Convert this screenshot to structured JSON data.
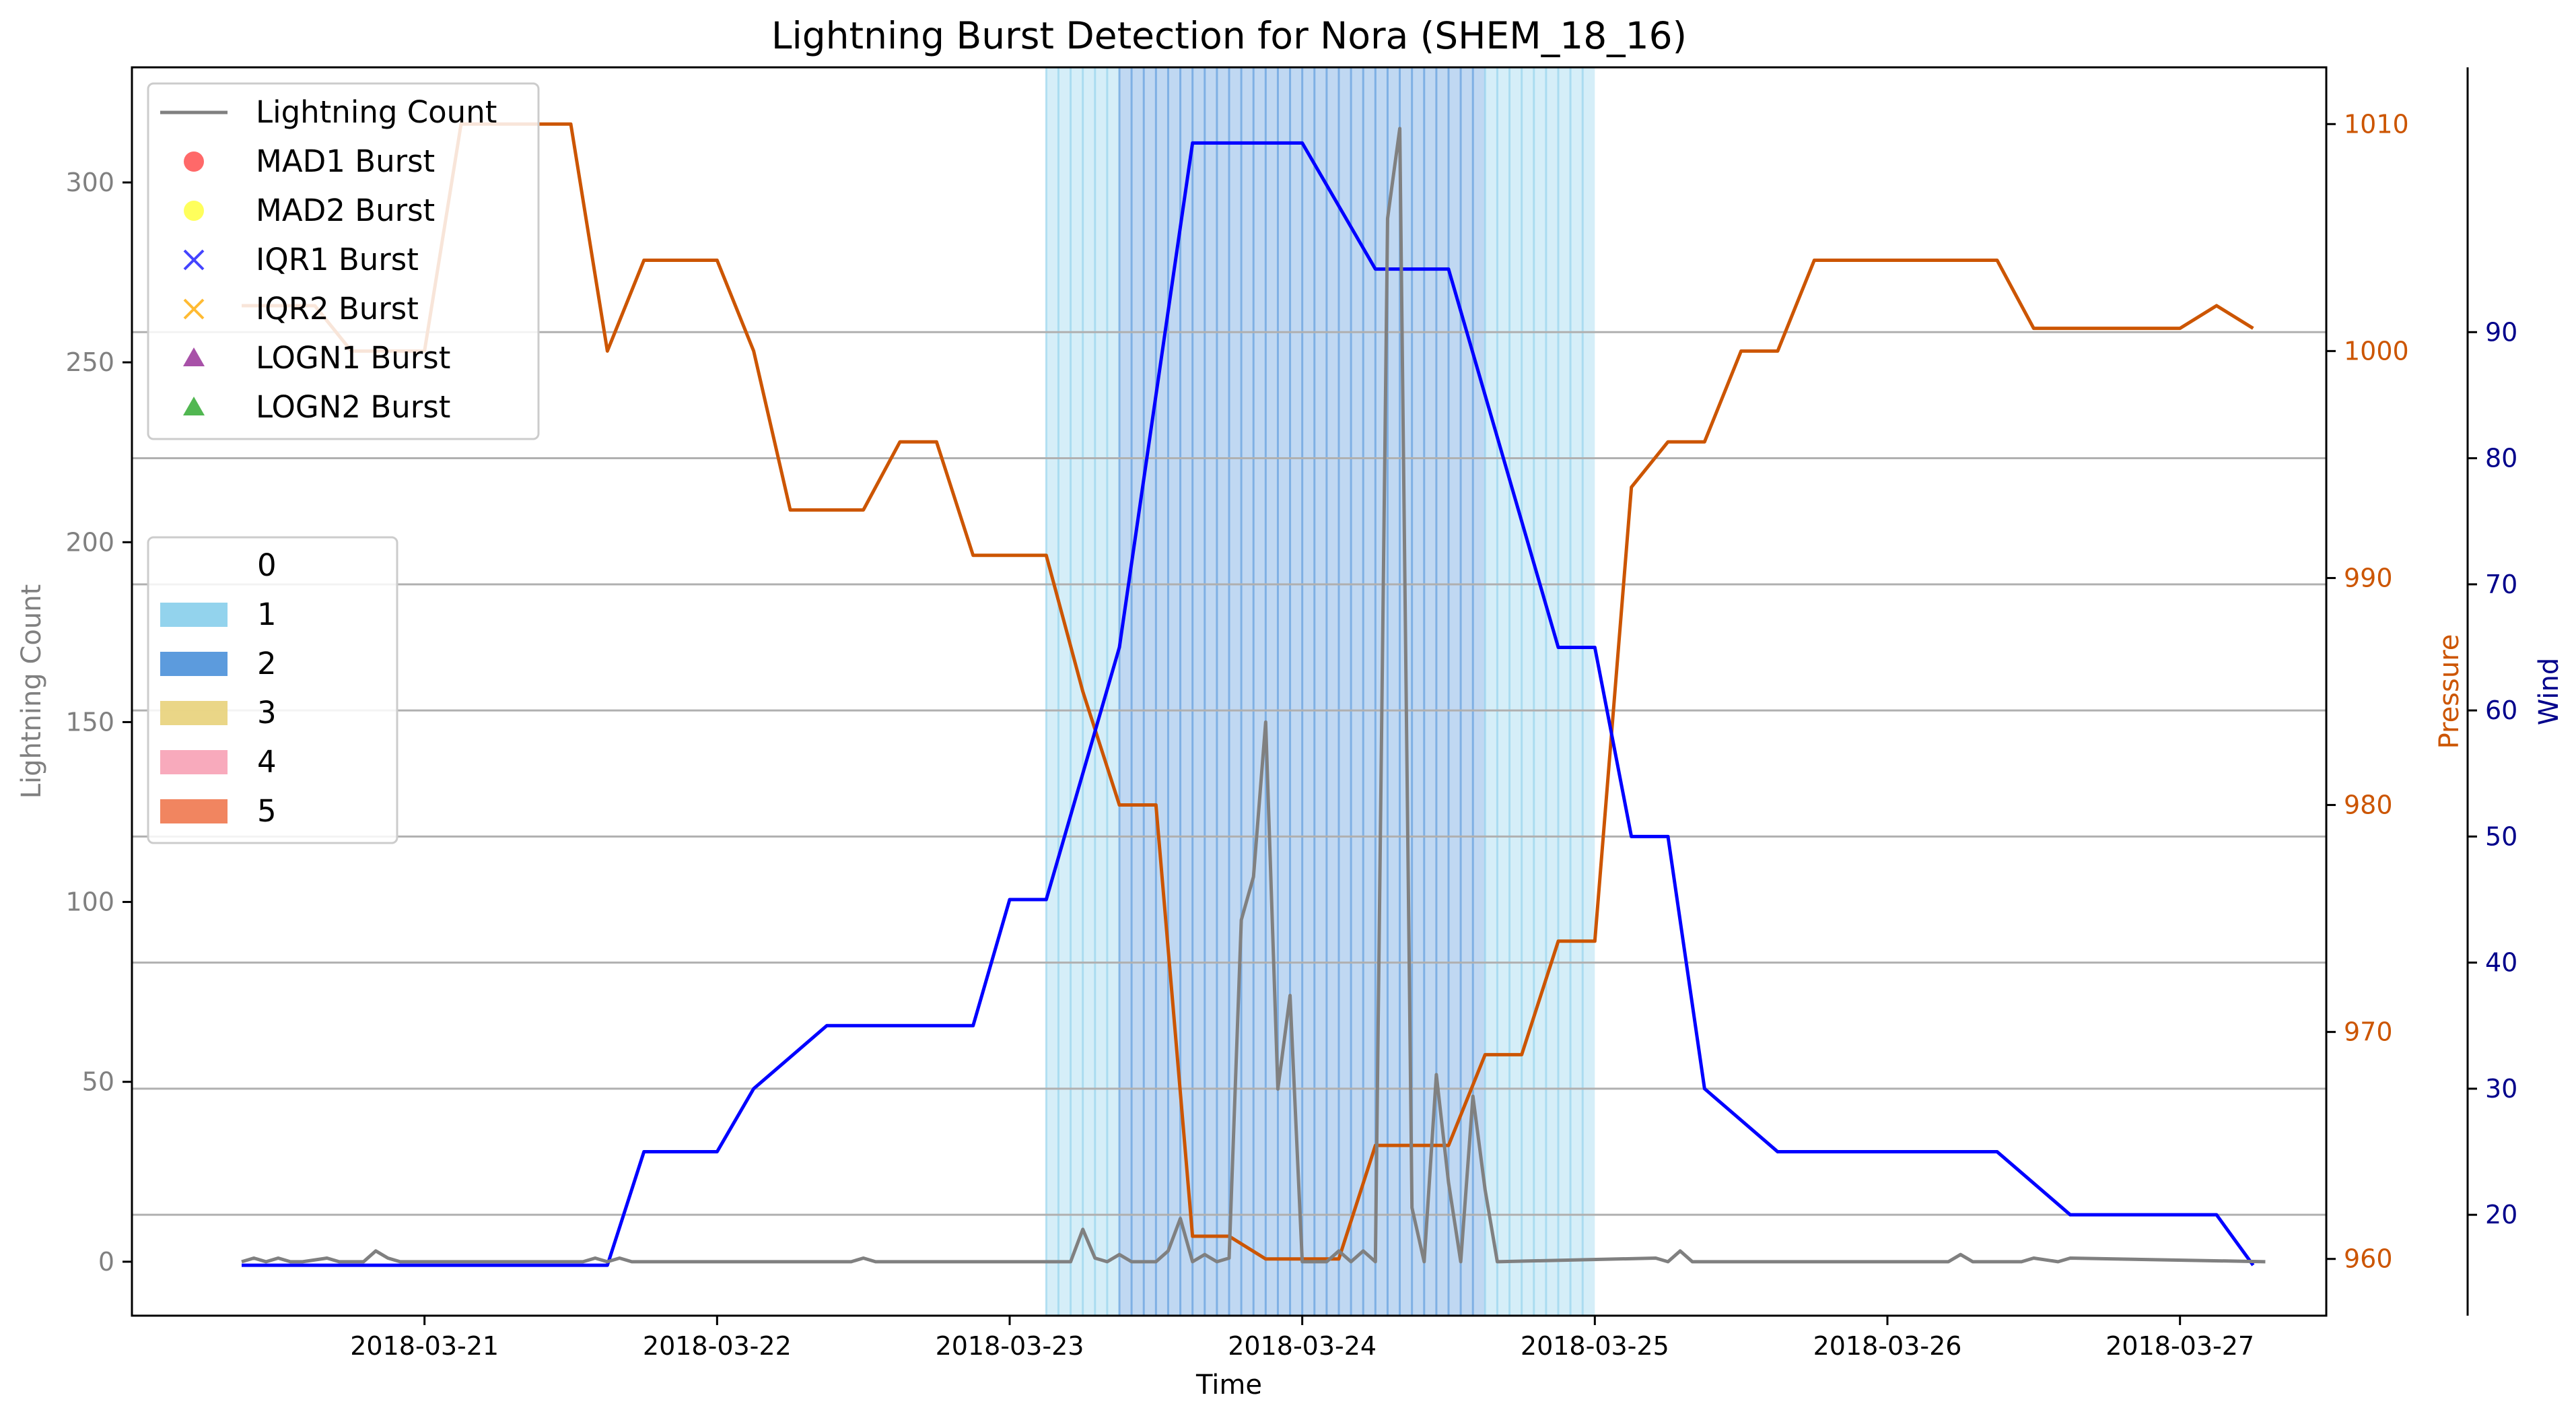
{
  "chart_data": {
    "type": "line",
    "title": "Lightning Burst Detection for Nora (SHEM_18_16)",
    "xlabel": "Time",
    "ylabel_left": "Lightning Count",
    "ylabel_pressure": "Pressure",
    "ylabel_wind": "Wind",
    "x_range": [
      "2018-03-20 00:00",
      "2018-03-27 12:00"
    ],
    "x_ticks": [
      "2018-03-21",
      "2018-03-22",
      "2018-03-23",
      "2018-03-24",
      "2018-03-25",
      "2018-03-26",
      "2018-03-27"
    ],
    "ylim_left": [
      -15,
      332
    ],
    "yticks_left": [
      0,
      50,
      100,
      150,
      200,
      250,
      300
    ],
    "ylim_pressure": [
      957.5,
      1012.5
    ],
    "yticks_pressure": [
      960,
      970,
      980,
      990,
      1000,
      1010
    ],
    "ylim_wind": [
      12,
      111
    ],
    "yticks_wind": [
      20,
      30,
      40,
      50,
      60,
      70,
      80,
      90
    ],
    "grid": "horizontal lines at wind ticks",
    "colors": {
      "lightning": "#808080",
      "pressure": "#cc5500",
      "wind": "#0000ff",
      "wind_axis": "#00008b",
      "category_1": "#87ceeb",
      "category_2": "#4a90d9",
      "category_3": "#e8d27a",
      "category_4": "#f7a1b5",
      "category_5": "#f0784f"
    },
    "category_bands": [
      {
        "category": "1",
        "start": "2018-03-23 03:00",
        "end": "2018-03-23 09:00"
      },
      {
        "category": "2",
        "start": "2018-03-23 09:00",
        "end": "2018-03-24 15:00"
      },
      {
        "category": "1",
        "start": "2018-03-24 15:00",
        "end": "2018-03-25 00:00"
      }
    ],
    "series": [
      {
        "name": "Lightning Count",
        "axis": "left",
        "x": [
          "2018-03-20 09:00",
          "2018-03-20 10:00",
          "2018-03-20 11:00",
          "2018-03-20 12:00",
          "2018-03-20 13:00",
          "2018-03-20 14:00",
          "2018-03-20 16:00",
          "2018-03-20 17:00",
          "2018-03-20 19:00",
          "2018-03-20 20:00",
          "2018-03-20 21:00",
          "2018-03-20 22:00",
          "2018-03-21 13:00",
          "2018-03-21 14:00",
          "2018-03-21 15:00",
          "2018-03-21 16:00",
          "2018-03-21 17:00",
          "2018-03-22 11:00",
          "2018-03-22 12:00",
          "2018-03-22 13:00",
          "2018-03-23 05:00",
          "2018-03-23 06:00",
          "2018-03-23 07:00",
          "2018-03-23 08:00",
          "2018-03-23 09:00",
          "2018-03-23 10:00",
          "2018-03-23 12:00",
          "2018-03-23 13:00",
          "2018-03-23 14:00",
          "2018-03-23 15:00",
          "2018-03-23 16:00",
          "2018-03-23 17:00",
          "2018-03-23 18:00",
          "2018-03-23 19:00",
          "2018-03-23 20:00",
          "2018-03-23 21:00",
          "2018-03-23 22:00",
          "2018-03-23 23:00",
          "2018-03-24 00:00",
          "2018-03-24 01:00",
          "2018-03-24 02:00",
          "2018-03-24 03:00",
          "2018-03-24 04:00",
          "2018-03-24 05:00",
          "2018-03-24 06:00",
          "2018-03-24 07:00",
          "2018-03-24 08:00",
          "2018-03-24 09:00",
          "2018-03-24 10:00",
          "2018-03-24 11:00",
          "2018-03-24 12:00",
          "2018-03-24 13:00",
          "2018-03-24 14:00",
          "2018-03-24 15:00",
          "2018-03-24 16:00",
          "2018-03-25 05:00",
          "2018-03-25 06:00",
          "2018-03-25 07:00",
          "2018-03-25 08:00",
          "2018-03-25 09:00",
          "2018-03-26 05:00",
          "2018-03-26 06:00",
          "2018-03-26 07:00",
          "2018-03-26 11:00",
          "2018-03-26 12:00",
          "2018-03-26 14:00",
          "2018-03-26 15:00",
          "2018-03-27 07:00"
        ],
        "values": [
          0,
          1,
          0,
          1,
          0,
          0,
          1,
          0,
          0,
          3,
          1,
          0,
          0,
          1,
          0,
          1,
          0,
          0,
          1,
          0,
          0,
          9,
          1,
          0,
          2,
          0,
          0,
          3,
          12,
          0,
          2,
          0,
          1,
          95,
          107,
          150,
          48,
          74,
          0,
          0,
          0,
          3,
          0,
          3,
          0,
          290,
          315,
          15,
          0,
          52,
          22,
          0,
          46,
          20,
          0,
          1,
          0,
          3,
          0,
          0,
          0,
          2,
          0,
          0,
          1,
          0,
          1,
          0
        ]
      },
      {
        "name": "Pressure",
        "axis": "pressure",
        "x": [
          "2018-03-20 09:00",
          "2018-03-20 15:00",
          "2018-03-20 18:00",
          "2018-03-21 00:00",
          "2018-03-21 03:00",
          "2018-03-21 06:00",
          "2018-03-21 09:00",
          "2018-03-21 12:00",
          "2018-03-21 15:00",
          "2018-03-21 18:00",
          "2018-03-21 21:00",
          "2018-03-22 00:00",
          "2018-03-22 03:00",
          "2018-03-22 06:00",
          "2018-03-22 09:00",
          "2018-03-22 12:00",
          "2018-03-22 15:00",
          "2018-03-22 18:00",
          "2018-03-22 21:00",
          "2018-03-23 00:00",
          "2018-03-23 03:00",
          "2018-03-23 06:00",
          "2018-03-23 09:00",
          "2018-03-23 12:00",
          "2018-03-23 15:00",
          "2018-03-23 18:00",
          "2018-03-23 21:00",
          "2018-03-24 00:00",
          "2018-03-24 03:00",
          "2018-03-24 06:00",
          "2018-03-24 09:00",
          "2018-03-24 12:00",
          "2018-03-24 15:00",
          "2018-03-24 18:00",
          "2018-03-24 21:00",
          "2018-03-25 00:00",
          "2018-03-25 03:00",
          "2018-03-25 06:00",
          "2018-03-25 09:00",
          "2018-03-25 12:00",
          "2018-03-25 15:00",
          "2018-03-25 18:00",
          "2018-03-25 21:00",
          "2018-03-26 00:00",
          "2018-03-26 03:00",
          "2018-03-26 06:00",
          "2018-03-26 09:00",
          "2018-03-26 12:00",
          "2018-03-26 15:00",
          "2018-03-26 18:00",
          "2018-03-26 21:00",
          "2018-03-27 00:00",
          "2018-03-27 03:00",
          "2018-03-27 06:00"
        ],
        "values": [
          1002,
          1002,
          1000,
          1000,
          1010,
          1010,
          1010,
          1010,
          1000,
          1004,
          1004,
          1004,
          1000,
          993,
          993,
          993,
          996,
          996,
          991,
          991,
          991,
          985,
          980,
          980,
          961,
          961,
          960,
          960,
          960,
          965,
          965,
          965,
          969,
          969,
          974,
          974,
          994,
          996,
          996,
          1000,
          1000,
          1004,
          1004,
          1004,
          1004,
          1004,
          1004,
          1001,
          1001,
          1001,
          1001,
          1001,
          1002,
          1001
        ]
      },
      {
        "name": "Wind",
        "axis": "wind",
        "x": [
          "2018-03-20 09:00",
          "2018-03-20 15:00",
          "2018-03-20 21:00",
          "2018-03-21 03:00",
          "2018-03-21 09:00",
          "2018-03-21 12:00",
          "2018-03-21 15:00",
          "2018-03-21 18:00",
          "2018-03-21 21:00",
          "2018-03-22 00:00",
          "2018-03-22 03:00",
          "2018-03-22 09:00",
          "2018-03-22 15:00",
          "2018-03-22 21:00",
          "2018-03-23 00:00",
          "2018-03-23 03:00",
          "2018-03-23 06:00",
          "2018-03-23 09:00",
          "2018-03-23 15:00",
          "2018-03-23 21:00",
          "2018-03-24 00:00",
          "2018-03-24 06:00",
          "2018-03-24 12:00",
          "2018-03-24 15:00",
          "2018-03-24 21:00",
          "2018-03-25 00:00",
          "2018-03-25 03:00",
          "2018-03-25 06:00",
          "2018-03-25 09:00",
          "2018-03-25 15:00",
          "2018-03-25 21:00",
          "2018-03-26 03:00",
          "2018-03-26 09:00",
          "2018-03-26 15:00",
          "2018-03-26 21:00",
          "2018-03-27 03:00",
          "2018-03-27 06:00"
        ],
        "values": [
          16,
          16,
          16,
          16,
          16,
          16,
          16,
          25,
          25,
          25,
          30,
          35,
          35,
          35,
          45,
          45,
          55,
          65,
          105,
          105,
          105,
          95,
          95,
          85,
          65,
          65,
          50,
          50,
          30,
          25,
          25,
          25,
          25,
          20,
          20,
          20,
          16
        ]
      }
    ],
    "legend_lines": [
      {
        "label": "Lightning Count",
        "marker": "line"
      },
      {
        "label": "MAD1 Burst",
        "marker": "circle"
      },
      {
        "label": "MAD2 Burst",
        "marker": "circle"
      },
      {
        "label": "IQR1 Burst",
        "marker": "x"
      },
      {
        "label": "IQR2 Burst",
        "marker": "x"
      },
      {
        "label": "LOGN1 Burst",
        "marker": "triangle"
      },
      {
        "label": "LOGN2 Burst",
        "marker": "triangle"
      }
    ],
    "legend_marker_colors": [
      "#808080",
      "#ff4444",
      "#ffff33",
      "#4444ff",
      "#ffbb33",
      "#993399",
      "#33aa33"
    ],
    "legend_categories": [
      "0",
      "1",
      "2",
      "3",
      "4",
      "5"
    ],
    "legend_category_colors": [
      "#ffffff",
      "#87ceeb",
      "#4a90d9",
      "#e8d27a",
      "#f7a1b5",
      "#f0784f"
    ]
  }
}
